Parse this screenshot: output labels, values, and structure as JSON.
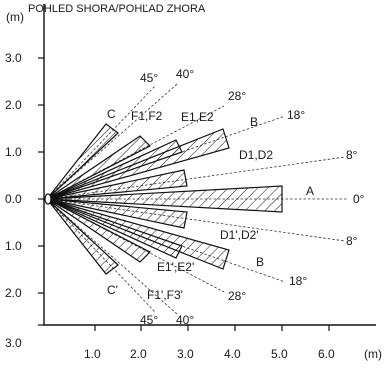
{
  "title": "POHLED SHORA/POHĽAD ZHORA",
  "y_unit": "(m)",
  "x_unit": "(m)",
  "y_ticks": [
    "3.0",
    "2.0",
    "1.0",
    "0.0",
    "1.0",
    "2.0",
    "3.0"
  ],
  "x_ticks": [
    "1.0",
    "2.0",
    "3.0",
    "4.0",
    "5.0",
    "6.0"
  ],
  "zones": [
    {
      "name": "A",
      "angle": "0°"
    },
    {
      "name": "B",
      "angle": "18°"
    },
    {
      "name": "C",
      "angle": "45°"
    },
    {
      "name": "D1,D2",
      "angle": "8°"
    },
    {
      "name": "E1,E2",
      "angle": "28°"
    },
    {
      "name": "F1,F2",
      "angle": "40°"
    },
    {
      "name": "B",
      "angle": "18°"
    },
    {
      "name": "C'",
      "angle": "45°"
    },
    {
      "name": "D1',D2'",
      "angle": "8°"
    },
    {
      "name": "E1',E2'",
      "angle": "28°"
    },
    {
      "name": "F1',F3'",
      "angle": "40°"
    }
  ],
  "labels": {
    "A": "A",
    "B_top": "B",
    "C_top": "C",
    "D_top": "D1,D2",
    "E_top": "E1,E2",
    "F_top": "F1,F2",
    "B_bot": "B",
    "C_bot": "C'",
    "D_bot": "D1',D2'",
    "E_bot": "E1',E2'",
    "F_bot": "F1',F3'"
  },
  "angles": {
    "a0": "0°",
    "a8_top": "8°",
    "a18_top": "18°",
    "a28_top": "28°",
    "a40_top": "40°",
    "a45_top": "45°",
    "a8_bot": "8°",
    "a18_bot": "18°",
    "a28_bot": "28°",
    "a40_bot": "40°",
    "a45_bot": "45°"
  }
}
